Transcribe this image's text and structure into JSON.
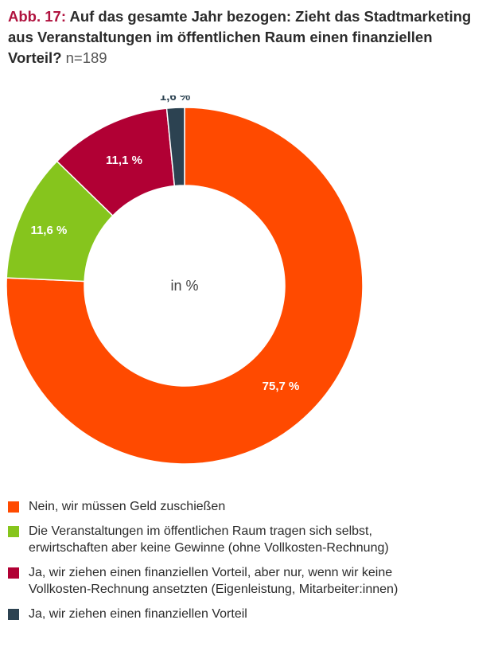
{
  "title": {
    "prefix": "Abb. 17:",
    "text": "Auf das gesamte Jahr bezogen: Zieht das Stadtmarketing aus Veranstaltungen im öffentlichen Raum einen finanziellen Vorteil?",
    "sample": "n=189"
  },
  "chart_data": {
    "type": "pie",
    "center_label": "in %",
    "slices": [
      {
        "name": "Nein, wir müssen Geld zuschießen",
        "value": 75.7,
        "label": "75,7 %",
        "color": "#ff4a00"
      },
      {
        "name": "Die Veranstaltungen im öffentlichen Raum tragen sich selbst,\nerwirtschaften aber keine Gewinne (ohne Vollkosten-Rechnung)",
        "value": 11.6,
        "label": "11,6 %",
        "color": "#86c51d"
      },
      {
        "name": "Ja, wir ziehen einen finanziellen Vorteil, aber nur, wenn wir keine\nVollkosten-Rechnung ansetzten (Eigenleistung, Mitarbeiter:innen)",
        "value": 11.1,
        "label": "11,1 %",
        "color": "#b10034"
      },
      {
        "name": "Ja, wir ziehen einen finanziellen Vorteil",
        "value": 1.6,
        "label": "1,6 %",
        "color": "#2c4251"
      }
    ],
    "label_color_inside": "#ffffff",
    "label_color_outside": "#2c4251"
  }
}
